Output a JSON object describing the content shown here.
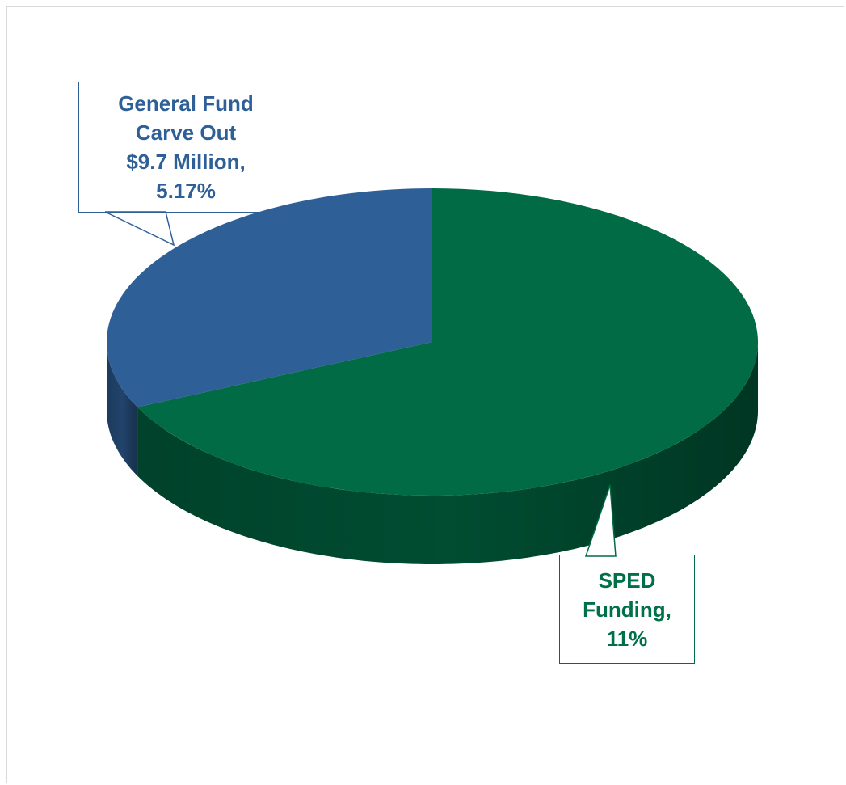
{
  "chart_data": {
    "type": "pie3d",
    "categories": [
      "General Fund Carve Out $9.7 Million,",
      "SPED Funding,"
    ],
    "values": [
      5.17,
      11
    ],
    "value_labels": [
      "5.17%",
      "11%"
    ],
    "colors": [
      "#2e5f96",
      "#006b45"
    ]
  }
}
